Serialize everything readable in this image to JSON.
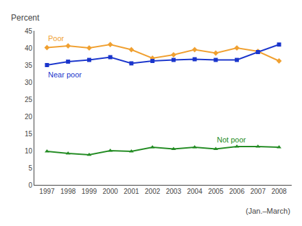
{
  "chart_data": {
    "type": "line",
    "ylabel": "Percent",
    "annotations": [
      "(Jan.–March)"
    ],
    "x": [
      1997,
      1998,
      1999,
      2000,
      2001,
      2002,
      2003,
      2004,
      2005,
      2006,
      2007,
      2008
    ],
    "series": [
      {
        "name": "Poor",
        "color": "#f0a030",
        "marker": "diamond",
        "values": [
          40.1,
          40.6,
          40.0,
          41.0,
          39.5,
          37.0,
          38.0,
          39.5,
          38.5,
          40.0,
          39.0,
          36.2
        ]
      },
      {
        "name": "Near poor",
        "color": "#1a35cc",
        "marker": "square",
        "values": [
          35.0,
          36.0,
          36.5,
          37.3,
          35.5,
          36.2,
          36.5,
          36.7,
          36.5,
          36.5,
          38.8,
          41.0
        ]
      },
      {
        "name": "Not poor",
        "color": "#228B22",
        "marker": "triangle-up",
        "values": [
          9.8,
          9.2,
          8.8,
          10.0,
          9.8,
          11.0,
          10.5,
          11.0,
          10.5,
          11.2,
          11.2,
          11.0
        ]
      }
    ],
    "xlim": [
      1996.4,
      2008.6
    ],
    "xticks": [
      1997,
      1998,
      1999,
      2000,
      2001,
      2002,
      2003,
      2004,
      2005,
      2006,
      2007,
      2008
    ],
    "ylim": [
      0,
      45
    ],
    "yticks": [
      0,
      5,
      10,
      15,
      20,
      25,
      30,
      35,
      40,
      45
    ],
    "grid": false
  }
}
